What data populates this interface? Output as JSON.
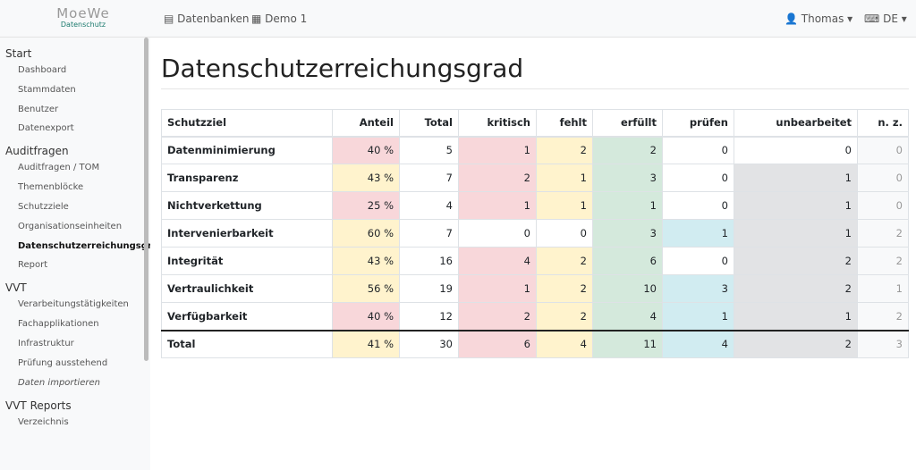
{
  "header": {
    "logo": {
      "name": "MoeWe",
      "tagline": "Datenschutz"
    },
    "nav": [
      "Datenbanken",
      "Demo 1"
    ],
    "user": "Thomas",
    "language": "DE"
  },
  "sidebar": [
    {
      "title": "Start",
      "items": [
        "Dashboard",
        "Stammdaten",
        "Benutzer",
        "Datenexport"
      ]
    },
    {
      "title": "Auditfragen",
      "items": [
        "Auditfragen / TOM",
        "Themenblöcke",
        "Schutzziele",
        "Organisationseinheiten",
        "Datenschutzerreichungsgrad",
        "Report"
      ],
      "active": 4
    },
    {
      "title": "VVT",
      "items": [
        "Verarbeitungstätigkeiten",
        "Fachapplikationen",
        "Infrastruktur",
        "Prüfung ausstehend",
        "Daten importieren"
      ],
      "italic": 4
    },
    {
      "title": "VVT Reports",
      "items": [
        "Verzeichnis"
      ]
    }
  ],
  "page": {
    "title": "Datenschutzerreichungsgrad"
  },
  "table": {
    "columns": [
      "Schutzziel",
      "Anteil",
      "Total",
      "kritisch",
      "fehlt",
      "erfüllt",
      "prüfen",
      "unbearbeitet",
      "n. z."
    ],
    "rows": [
      {
        "cells": [
          "Datenminimierung",
          "40 %",
          "5",
          "1",
          "2",
          "2",
          "0",
          "0",
          "0"
        ],
        "shading": [
          "w",
          "r",
          "w",
          "r",
          "y",
          "g",
          "w",
          "w",
          "n"
        ]
      },
      {
        "cells": [
          "Transparenz",
          "43 %",
          "7",
          "2",
          "1",
          "3",
          "0",
          "1",
          "0"
        ],
        "shading": [
          "w",
          "y",
          "w",
          "r",
          "y",
          "g",
          "w",
          "s",
          "n"
        ]
      },
      {
        "cells": [
          "Nichtverkettung",
          "25 %",
          "4",
          "1",
          "1",
          "1",
          "0",
          "1",
          "0"
        ],
        "shading": [
          "w",
          "r",
          "w",
          "r",
          "y",
          "g",
          "w",
          "s",
          "n"
        ]
      },
      {
        "cells": [
          "Intervenierbarkeit",
          "60 %",
          "7",
          "0",
          "0",
          "3",
          "1",
          "1",
          "2"
        ],
        "shading": [
          "w",
          "y",
          "w",
          "w",
          "w",
          "g",
          "c",
          "s",
          "n"
        ]
      },
      {
        "cells": [
          "Integrität",
          "43 %",
          "16",
          "4",
          "2",
          "6",
          "0",
          "2",
          "2"
        ],
        "shading": [
          "w",
          "y",
          "w",
          "r",
          "y",
          "g",
          "w",
          "s",
          "n"
        ]
      },
      {
        "cells": [
          "Vertraulichkeit",
          "56 %",
          "19",
          "1",
          "2",
          "10",
          "3",
          "2",
          "1"
        ],
        "shading": [
          "w",
          "y",
          "w",
          "r",
          "y",
          "g",
          "c",
          "s",
          "n"
        ]
      },
      {
        "cells": [
          "Verfügbarkeit",
          "40 %",
          "12",
          "2",
          "2",
          "4",
          "1",
          "1",
          "2"
        ],
        "shading": [
          "w",
          "r",
          "w",
          "r",
          "y",
          "g",
          "c",
          "s",
          "n"
        ]
      }
    ],
    "total": {
      "cells": [
        "Total",
        "41 %",
        "30",
        "6",
        "4",
        "11",
        "4",
        "2",
        "3"
      ],
      "shading": [
        "w",
        "y",
        "w",
        "r",
        "y",
        "g",
        "c",
        "s",
        "n"
      ]
    }
  }
}
